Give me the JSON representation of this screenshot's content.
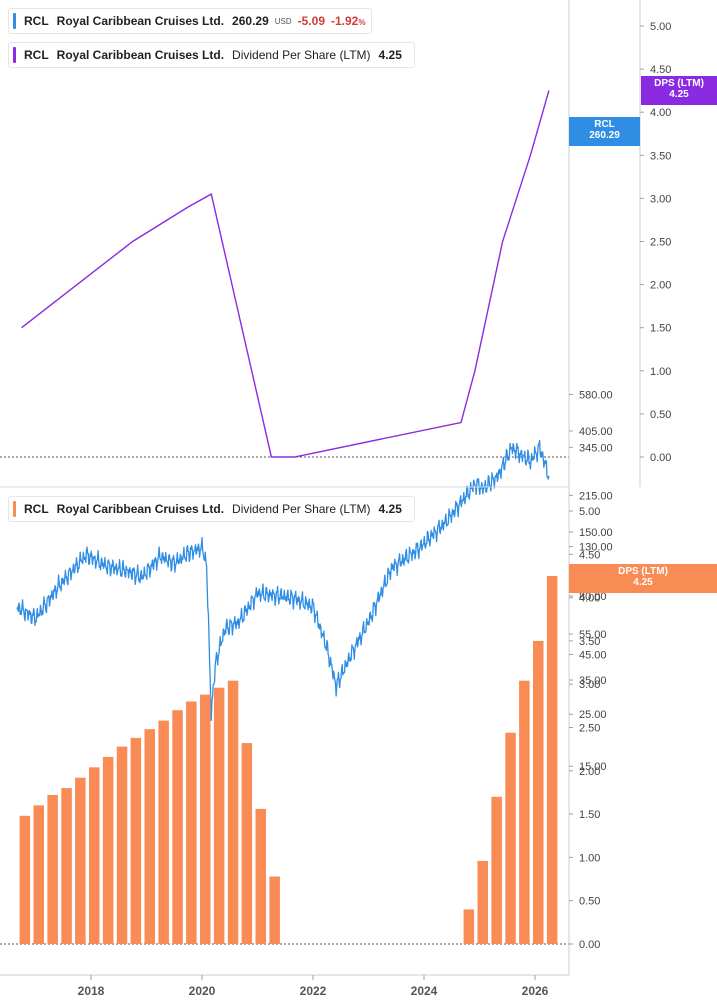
{
  "legend_price": {
    "symbol": "RCL",
    "name": "Royal Caribbean Cruises Ltd.",
    "value": "260.29",
    "currency": "USD",
    "change": "-5.09",
    "change_pct": "-1.92",
    "pct_sign": "%"
  },
  "legend_dps_top": {
    "symbol": "RCL",
    "name": "Royal Caribbean Cruises Ltd.",
    "metric": "Dividend Per Share (LTM)",
    "value": "4.25"
  },
  "legend_dps_bottom": {
    "symbol": "RCL",
    "name": "Royal Caribbean Cruises Ltd.",
    "metric": "Dividend Per Share (LTM)",
    "value": "4.25"
  },
  "tags": {
    "price_label": "RCL",
    "price_value": "260.29",
    "dps_label": "DPS (LTM)",
    "dps_value": "4.25",
    "dps2_label": "DPS (LTM)",
    "dps2_value": "4.25"
  },
  "colors": {
    "price": "#2f8de4",
    "dps_line": "#8a2be2",
    "bars": "#f98b55",
    "negative": "#d23b3b"
  },
  "chart_data": [
    {
      "type": "line",
      "title": "",
      "scale": "log",
      "y_ticks": [
        "580.00",
        "405.00",
        "345.00",
        "215.00",
        "150.00",
        "130.00",
        "105.00",
        "80.00",
        "55.00",
        "45.00",
        "35.00",
        "25.00",
        "15.00"
      ],
      "x_ticks": [
        "2018",
        "2020",
        "2022",
        "2024",
        "2026"
      ],
      "series": [
        {
          "name": "RCL",
          "x": [
            "2016-09",
            "2017-01",
            "2017-06",
            "2017-12",
            "2018-04",
            "2018-09",
            "2018-12",
            "2019-04",
            "2019-07",
            "2019-10",
            "2020-01",
            "2020-02",
            "2020-03",
            "2020-04",
            "2020-06",
            "2020-09",
            "2021-01",
            "2021-06",
            "2021-09",
            "2022-01",
            "2022-04",
            "2022-06",
            "2022-09",
            "2023-01",
            "2023-06",
            "2023-12",
            "2024-06",
            "2024-12",
            "2025-02",
            "2025-05",
            "2025-08",
            "2025-10",
            "2025-12",
            "2026-02",
            "2026-04"
          ],
          "y": [
            72,
            64,
            88,
            120,
            108,
            102,
            96,
            118,
            110,
            122,
            128,
            110,
            25,
            42,
            58,
            62,
            82,
            80,
            78,
            72,
            48,
            33,
            44,
            62,
            105,
            128,
            168,
            240,
            230,
            260,
            345,
            320,
            300,
            345,
            260.29
          ]
        },
        {
          "name": "DPS (LTM)",
          "axis": "right",
          "y_ticks": [
            "5.00",
            "4.50",
            "4.00",
            "3.50",
            "3.00",
            "2.50",
            "2.00",
            "1.50",
            "1.00",
            "0.50",
            "0.00"
          ],
          "x": [
            "2016-10",
            "2017-10",
            "2018-10",
            "2019-10",
            "2020-03",
            "2021-04",
            "2021-09",
            "2024-09",
            "2024-12",
            "2025-06",
            "2025-12",
            "2026-04"
          ],
          "y": [
            1.5,
            2.0,
            2.5,
            2.9,
            3.05,
            0.0,
            0.0,
            0.4,
            1.0,
            2.5,
            3.5,
            4.25
          ]
        }
      ]
    },
    {
      "type": "bar",
      "title": "",
      "y_ticks": [
        "5.00",
        "4.50",
        "4.00",
        "3.50",
        "3.00",
        "2.50",
        "2.00",
        "1.50",
        "1.00",
        "0.50",
        "0.00"
      ],
      "x_ticks": [
        "2018",
        "2020",
        "2022",
        "2024",
        "2026"
      ],
      "ylim": [
        0,
        5
      ],
      "series": [
        {
          "name": "Dividend Per Share (LTM)",
          "x": [
            "2016-10",
            "2017-01",
            "2017-04",
            "2017-07",
            "2017-10",
            "2018-01",
            "2018-04",
            "2018-07",
            "2018-10",
            "2019-01",
            "2019-04",
            "2019-07",
            "2019-10",
            "2020-01",
            "2020-04",
            "2020-07",
            "2020-10",
            "2021-01",
            "2021-04",
            "2021-07",
            "2021-10",
            "2022-01",
            "2022-04",
            "2022-07",
            "2022-10",
            "2023-01",
            "2023-04",
            "2023-07",
            "2023-10",
            "2024-01",
            "2024-04",
            "2024-07",
            "2024-10",
            "2025-01",
            "2025-04",
            "2025-07",
            "2025-10",
            "2026-01",
            "2026-04"
          ],
          "values": [
            1.48,
            1.6,
            1.72,
            1.8,
            1.92,
            2.04,
            2.16,
            2.28,
            2.38,
            2.48,
            2.58,
            2.7,
            2.8,
            2.88,
            2.96,
            3.04,
            2.32,
            1.56,
            0.78,
            0,
            0,
            0,
            0,
            0,
            0,
            0,
            0,
            0,
            0,
            0,
            0,
            0,
            0.4,
            0.96,
            1.7,
            2.44,
            3.04,
            3.5,
            4.25
          ]
        }
      ]
    }
  ]
}
